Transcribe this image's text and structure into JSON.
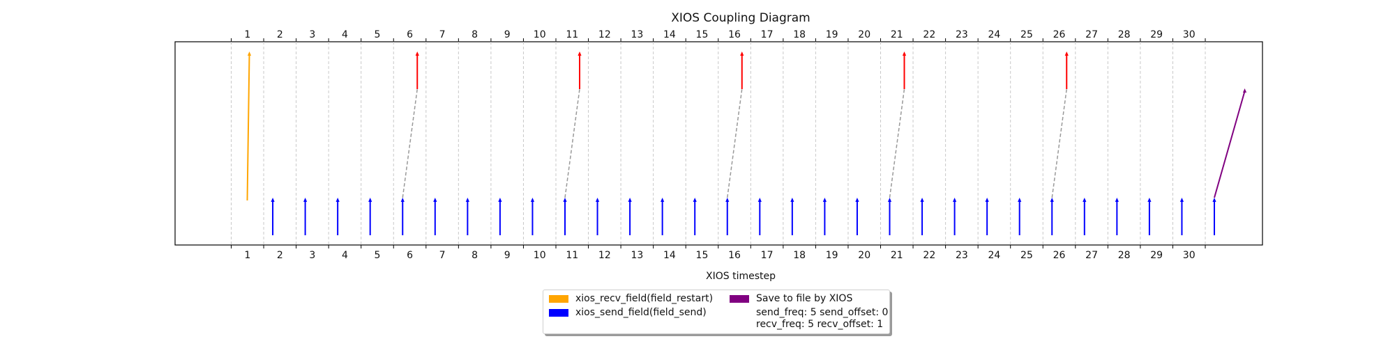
{
  "chart_data": {
    "type": "line",
    "title": "XIOS Coupling Diagram",
    "xlabel": "XIOS timestep",
    "ylabel": "",
    "categories": [
      "1",
      "2",
      "3",
      "4",
      "5",
      "6",
      "7",
      "8",
      "9",
      "10",
      "11",
      "12",
      "13",
      "14",
      "15",
      "16",
      "17",
      "18",
      "19",
      "20",
      "21",
      "22",
      "23",
      "24",
      "25",
      "26",
      "27",
      "28",
      "29",
      "30"
    ],
    "grid": "vertical dashed",
    "colors": {
      "recv_restart": "#ffa500",
      "send": "#0000ff",
      "save": "#800080",
      "recv": "#ff0000",
      "link": "#999999"
    },
    "send_steps": [
      1,
      2,
      3,
      4,
      5,
      6,
      7,
      8,
      9,
      10,
      11,
      12,
      13,
      14,
      15,
      16,
      17,
      18,
      19,
      20,
      21,
      22,
      23,
      24,
      25,
      26,
      27,
      28,
      29,
      30
    ],
    "recv_steps": [
      5,
      10,
      15,
      20,
      25
    ],
    "restart_recv_step": 0,
    "save_step": 30,
    "legend": {
      "placement": "bottom-center",
      "items": [
        {
          "label": "xios_recv_field(field_restart)",
          "color": "#ffa500"
        },
        {
          "label": "xios_send_field(field_send)",
          "color": "#0000ff"
        },
        {
          "label": "Save to file by XIOS",
          "color": "#800080"
        }
      ],
      "notes": [
        "send_freq: 5 send_offset: 0",
        "recv_freq: 5 recv_offset: 1"
      ]
    }
  }
}
